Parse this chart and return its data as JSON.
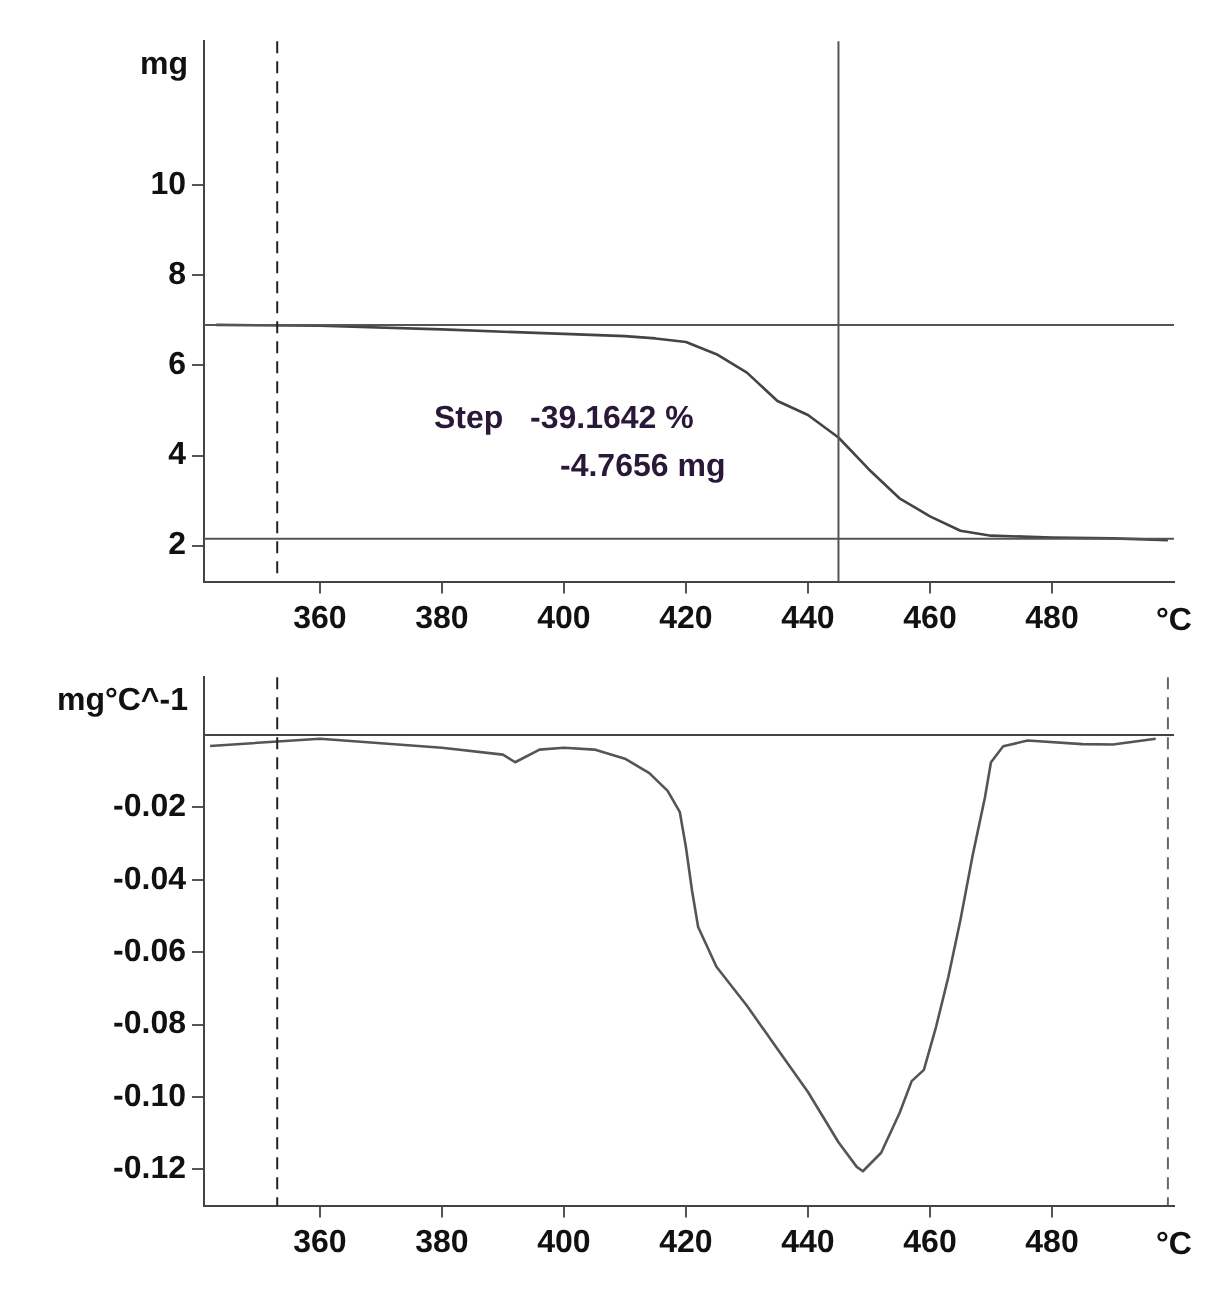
{
  "chart_data": [
    {
      "type": "line",
      "x": [
        343,
        360,
        380,
        400,
        410,
        415,
        420,
        425,
        430,
        435,
        440,
        445,
        450,
        455,
        460,
        465,
        470,
        480,
        490,
        499
      ],
      "series": [
        {
          "color": "#444444",
          "values": [
            6.9,
            6.88,
            6.8,
            6.7,
            6.65,
            6.6,
            6.52,
            6.25,
            5.84,
            5.21,
            4.9,
            4.4,
            3.69,
            3.05,
            2.65,
            2.33,
            2.22,
            2.18,
            2.16,
            2.12
          ]
        }
      ],
      "xlim": [
        341,
        500
      ],
      "xticks": [
        360,
        380,
        400,
        420,
        440,
        460,
        480
      ],
      "xlabel": "°C",
      "ylim": [
        1.2,
        13.2
      ],
      "yticks": [
        2,
        4,
        6,
        8,
        10
      ],
      "ylabel": "mg",
      "ref_lines": [
        {
          "axis": "y",
          "value": 6.9,
          "color": "#555555",
          "line_style": "solid"
        },
        {
          "axis": "y",
          "value": 2.15,
          "color": "#555555",
          "line_style": "solid"
        },
        {
          "axis": "x",
          "value": 445,
          "color": "#555555",
          "line_style": "solid"
        },
        {
          "axis": "x",
          "value": 353,
          "color": "#222222",
          "line_style": "dashed"
        }
      ],
      "annotations": [
        "Step   -39.1642 %",
        "-4.7656 mg"
      ],
      "grid": false,
      "marker": "none",
      "line_style": "solid"
    },
    {
      "type": "line",
      "x": [
        342,
        360,
        380,
        390,
        392,
        396,
        400,
        405,
        410,
        414,
        417,
        419,
        420,
        421,
        422,
        425,
        430,
        435,
        440,
        445,
        448,
        449,
        452,
        455,
        457,
        459,
        461,
        463,
        465,
        467,
        469,
        470,
        472,
        476,
        485,
        490,
        497
      ],
      "series": [
        {
          "color": "#555555",
          "values": [
            -0.003,
            -0.001,
            -0.0035,
            -0.0054,
            -0.0075,
            -0.004,
            -0.0035,
            -0.004,
            -0.0065,
            -0.0105,
            -0.0154,
            -0.0213,
            -0.031,
            -0.043,
            -0.053,
            -0.064,
            -0.0748,
            -0.0867,
            -0.0986,
            -0.1125,
            -0.1193,
            -0.1205,
            -0.1154,
            -0.1045,
            -0.0956,
            -0.0925,
            -0.0806,
            -0.0669,
            -0.051,
            -0.0332,
            -0.0173,
            -0.0075,
            -0.0031,
            -0.0015,
            -0.0025,
            -0.0026,
            -0.001
          ]
        }
      ],
      "xlim": [
        341,
        500
      ],
      "xticks": [
        360,
        380,
        400,
        420,
        440,
        460,
        480
      ],
      "xlabel": "°C",
      "ylim": [
        -0.13,
        0.016
      ],
      "yticks": [
        -0.02,
        -0.04,
        -0.06,
        -0.08,
        {
          "value": -0.1,
          "label": "-0.10"
        },
        -0.12
      ],
      "ylabel": "mg°C^-1",
      "ref_lines": [
        {
          "axis": "y",
          "value": 0,
          "color": "#444444",
          "line_style": "solid"
        },
        {
          "axis": "x",
          "value": 353,
          "color": "#222222",
          "line_style": "dashed"
        },
        {
          "axis": "x",
          "value": 499,
          "color": "#666666",
          "line_style": "dashed"
        }
      ],
      "grid": false,
      "marker": "none",
      "line_style": "solid"
    }
  ]
}
